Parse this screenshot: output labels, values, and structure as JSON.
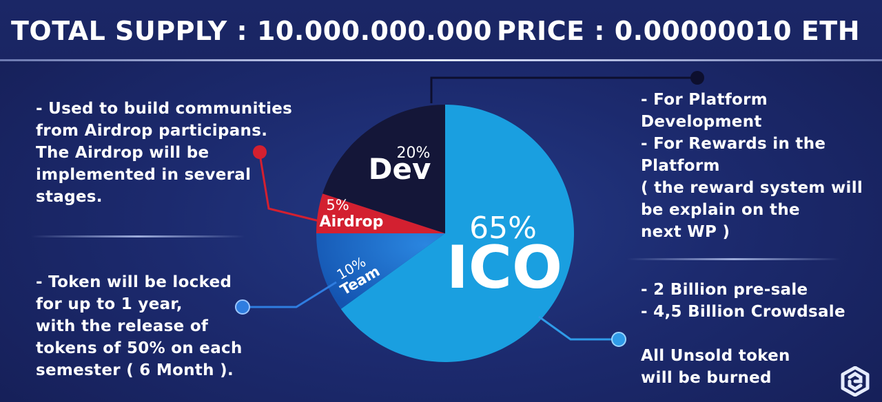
{
  "header": {
    "total_supply": "TOTAL SUPPLY : 10.000.000.000",
    "price": "PRICE : 0.00000010 ETH"
  },
  "notes": {
    "airdrop": "- Used to build communities\nfrom Airdrop participans.\nThe Airdrop will be\nimplemented in several\nstages.",
    "team": "- Token will be locked\nfor up to 1 year,\nwith the release of\ntokens of 50% on each\nsemester ( 6 Month ).",
    "dev": "- For Platform\nDevelopment\n- For Rewards in the\nPlatform\n( the reward system will\nbe explain on the\nnext WP )",
    "ico": "- 2 Billion pre-sale\n- 4,5 Billion Crowdsale",
    "burn": "All Unsold token\nwill be burned"
  },
  "chart_data": {
    "type": "pie",
    "title": "",
    "start_angle_deg": 0,
    "direction": "clockwise",
    "slices": [
      {
        "name": "ICO",
        "value": 65,
        "label": "65%",
        "color": "#1a9fe0"
      },
      {
        "name": "Team",
        "value": 10,
        "label": "10%",
        "color": "#1a68c8"
      },
      {
        "name": "Airdrop",
        "value": 5,
        "label": "5%",
        "color": "#d32030"
      },
      {
        "name": "Dev",
        "value": 20,
        "label": "20%",
        "color": "#141638"
      }
    ],
    "connector_colors": {
      "dev": "#0d0f2e",
      "airdrop": "#d32030",
      "team": "#2f7de0",
      "ico": "#2f9be8"
    }
  }
}
